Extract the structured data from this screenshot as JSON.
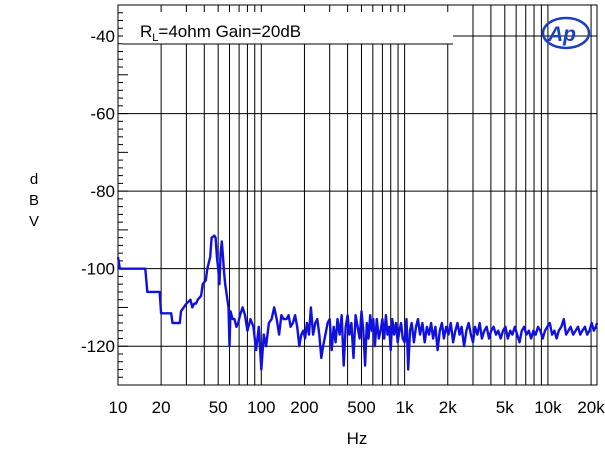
{
  "chart_data": {
    "type": "line",
    "xlabel": "Hz",
    "ylabel": "dBV",
    "ylabel_letters": [
      "d",
      "B",
      "V"
    ],
    "x_scale": "log",
    "xlim": [
      10,
      22000
    ],
    "ylim": [
      -130,
      -32
    ],
    "grid": true,
    "annotation": {
      "prefix": "R",
      "subscript": "L",
      "text": "=4ohm Gain=20dB"
    },
    "x_ticks": [
      {
        "value": 10,
        "label": "10"
      },
      {
        "value": 20,
        "label": "20"
      },
      {
        "value": 50,
        "label": "50"
      },
      {
        "value": 100,
        "label": "100"
      },
      {
        "value": 200,
        "label": "200"
      },
      {
        "value": 500,
        "label": "500"
      },
      {
        "value": 1000,
        "label": "1k"
      },
      {
        "value": 2000,
        "label": "2k"
      },
      {
        "value": 5000,
        "label": "5k"
      },
      {
        "value": 10000,
        "label": "10k"
      },
      {
        "value": 20000,
        "label": "20k"
      }
    ],
    "y_ticks": [
      {
        "value": -40,
        "label": "-40"
      },
      {
        "value": -60,
        "label": "-60"
      },
      {
        "value": -80,
        "label": "-80"
      },
      {
        "value": -100,
        "label": "-100"
      },
      {
        "value": -120,
        "label": "-120"
      }
    ],
    "logo": "Ap",
    "series": [
      {
        "color": "#1010e0",
        "points": [
          [
            10,
            -97
          ],
          [
            10.3,
            -100
          ],
          [
            11,
            -100
          ],
          [
            12,
            -100
          ],
          [
            13,
            -100
          ],
          [
            14,
            -100
          ],
          [
            15.5,
            -100
          ],
          [
            16,
            -106
          ],
          [
            18,
            -106
          ],
          [
            19.5,
            -106
          ],
          [
            20,
            -111.5
          ],
          [
            22,
            -111.5
          ],
          [
            23.5,
            -111.5
          ],
          [
            24,
            -114
          ],
          [
            26,
            -114
          ],
          [
            27,
            -114
          ],
          [
            27.5,
            -111
          ],
          [
            30,
            -109
          ],
          [
            32,
            -108
          ],
          [
            33,
            -110
          ],
          [
            34,
            -109
          ],
          [
            35,
            -109
          ],
          [
            36,
            -108
          ],
          [
            38,
            -107
          ],
          [
            39,
            -104
          ],
          [
            41,
            -103
          ],
          [
            42,
            -100
          ],
          [
            44,
            -97
          ],
          [
            45,
            -92
          ],
          [
            47,
            -91.5
          ],
          [
            48,
            -92
          ],
          [
            49,
            -97
          ],
          [
            50,
            -100
          ],
          [
            51,
            -104
          ],
          [
            52,
            -96
          ],
          [
            53,
            -93
          ],
          [
            54,
            -97
          ],
          [
            55,
            -101
          ],
          [
            56,
            -104
          ],
          [
            58,
            -108
          ],
          [
            59,
            -110
          ],
          [
            60,
            -120
          ],
          [
            61,
            -111
          ],
          [
            63,
            -113
          ],
          [
            65,
            -113
          ],
          [
            67,
            -115
          ],
          [
            69,
            -114
          ],
          [
            71,
            -112
          ],
          [
            74,
            -110
          ],
          [
            77,
            -112
          ],
          [
            80,
            -116
          ],
          [
            84,
            -113
          ],
          [
            88,
            -115
          ],
          [
            92,
            -121
          ],
          [
            96,
            -115
          ],
          [
            100,
            -126
          ],
          [
            104,
            -117
          ],
          [
            108,
            -120
          ],
          [
            113,
            -114
          ],
          [
            118,
            -113
          ],
          [
            123,
            -110
          ],
          [
            128,
            -113
          ],
          [
            133,
            -117
          ],
          [
            138,
            -112
          ],
          [
            143,
            -113
          ],
          [
            150,
            -113
          ],
          [
            155,
            -112
          ],
          [
            160,
            -115
          ],
          [
            166,
            -114
          ],
          [
            172,
            -112
          ],
          [
            178,
            -115
          ],
          [
            184,
            -120
          ],
          [
            190,
            -117
          ],
          [
            196,
            -116
          ],
          [
            202,
            -118
          ],
          [
            208,
            -114
          ],
          [
            215,
            -117
          ],
          [
            222,
            -110
          ],
          [
            230,
            -117
          ],
          [
            238,
            -114
          ],
          [
            246,
            -113
          ],
          [
            254,
            -117
          ],
          [
            262,
            -123
          ],
          [
            270,
            -120
          ],
          [
            280,
            -117
          ],
          [
            290,
            -114
          ],
          [
            300,
            -113
          ],
          [
            310,
            -121
          ],
          [
            320,
            -115
          ],
          [
            330,
            -119
          ],
          [
            340,
            -113
          ],
          [
            352,
            -117
          ],
          [
            364,
            -112
          ],
          [
            376,
            -125
          ],
          [
            388,
            -115
          ],
          [
            400,
            -112
          ],
          [
            412,
            -117
          ],
          [
            425,
            -114
          ],
          [
            440,
            -123
          ],
          [
            455,
            -112
          ],
          [
            470,
            -115
          ],
          [
            485,
            -118
          ],
          [
            500,
            -111
          ],
          [
            515,
            -116
          ],
          [
            530,
            -125
          ],
          [
            545,
            -114
          ],
          [
            560,
            -118
          ],
          [
            575,
            -112
          ],
          [
            590,
            -116
          ],
          [
            605,
            -113
          ],
          [
            620,
            -120
          ],
          [
            640,
            -113
          ],
          [
            660,
            -118
          ],
          [
            680,
            -116
          ],
          [
            700,
            -113
          ],
          [
            720,
            -118
          ],
          [
            740,
            -112
          ],
          [
            760,
            -117
          ],
          [
            780,
            -115
          ],
          [
            800,
            -121
          ],
          [
            820,
            -113
          ],
          [
            845,
            -117
          ],
          [
            870,
            -114
          ],
          [
            895,
            -119
          ],
          [
            920,
            -116
          ],
          [
            945,
            -114
          ],
          [
            970,
            -118
          ],
          [
            1000,
            -119
          ],
          [
            1030,
            -113
          ],
          [
            1060,
            -126
          ],
          [
            1090,
            -116
          ],
          [
            1120,
            -114
          ],
          [
            1160,
            -119
          ],
          [
            1200,
            -115
          ],
          [
            1240,
            -113
          ],
          [
            1280,
            -117
          ],
          [
            1330,
            -114
          ],
          [
            1380,
            -119
          ],
          [
            1430,
            -115
          ],
          [
            1480,
            -117
          ],
          [
            1530,
            -114
          ],
          [
            1580,
            -118
          ],
          [
            1640,
            -115
          ],
          [
            1700,
            -121
          ],
          [
            1760,
            -116
          ],
          [
            1820,
            -114
          ],
          [
            1880,
            -118
          ],
          [
            1950,
            -115
          ],
          [
            2020,
            -117
          ],
          [
            2100,
            -114
          ],
          [
            2180,
            -119
          ],
          [
            2260,
            -116
          ],
          [
            2340,
            -114
          ],
          [
            2420,
            -117
          ],
          [
            2500,
            -115
          ],
          [
            2600,
            -120
          ],
          [
            2700,
            -116
          ],
          [
            2800,
            -114
          ],
          [
            2900,
            -117
          ],
          [
            3000,
            -119
          ],
          [
            3100,
            -115
          ],
          [
            3220,
            -117
          ],
          [
            3340,
            -114
          ],
          [
            3460,
            -118
          ],
          [
            3600,
            -116
          ],
          [
            3740,
            -115
          ],
          [
            3880,
            -118
          ],
          [
            4020,
            -116
          ],
          [
            4180,
            -115
          ],
          [
            4340,
            -117
          ],
          [
            4500,
            -116
          ],
          [
            4680,
            -118
          ],
          [
            4860,
            -116
          ],
          [
            5050,
            -115
          ],
          [
            5250,
            -118
          ],
          [
            5450,
            -116
          ],
          [
            5650,
            -117
          ],
          [
            5870,
            -115
          ],
          [
            6100,
            -117
          ],
          [
            6330,
            -119
          ],
          [
            6570,
            -116
          ],
          [
            6820,
            -115
          ],
          [
            7080,
            -117
          ],
          [
            7350,
            -116
          ],
          [
            7630,
            -118
          ],
          [
            7920,
            -116
          ],
          [
            8220,
            -117
          ],
          [
            8530,
            -115
          ],
          [
            8850,
            -116
          ],
          [
            9190,
            -118
          ],
          [
            9540,
            -116
          ],
          [
            9900,
            -115
          ],
          [
            10300,
            -114
          ],
          [
            10700,
            -117
          ],
          [
            11100,
            -116
          ],
          [
            11500,
            -118
          ],
          [
            11900,
            -116
          ],
          [
            12400,
            -115
          ],
          [
            12900,
            -113
          ],
          [
            13400,
            -117
          ],
          [
            13900,
            -116
          ],
          [
            14400,
            -115
          ],
          [
            15000,
            -117
          ],
          [
            15600,
            -116
          ],
          [
            16200,
            -115
          ],
          [
            16800,
            -117
          ],
          [
            17400,
            -116
          ],
          [
            18100,
            -115
          ],
          [
            18800,
            -117
          ],
          [
            19500,
            -116
          ],
          [
            20200,
            -114
          ],
          [
            20900,
            -116
          ],
          [
            21600,
            -115
          ],
          [
            22000,
            -114
          ]
        ]
      }
    ]
  }
}
